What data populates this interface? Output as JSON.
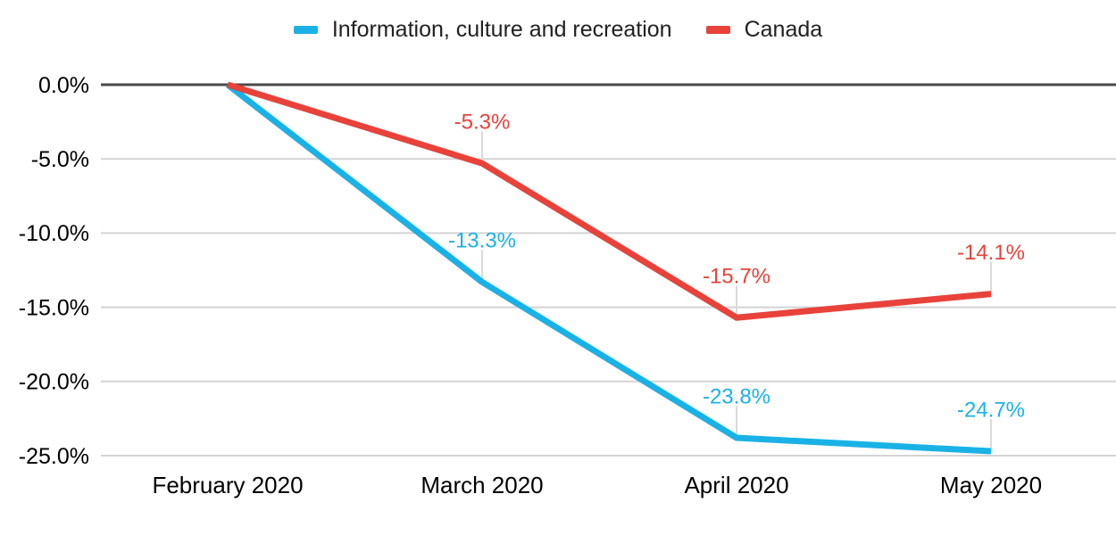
{
  "chart_data": {
    "type": "line",
    "title": "",
    "xlabel": "",
    "ylabel": "",
    "categories": [
      "February 2020",
      "March 2020",
      "April 2020",
      "May 2020"
    ],
    "series": [
      {
        "name": "Information, culture and recreation",
        "color": "#1ab2e6",
        "values": [
          0.0,
          -13.3,
          -23.8,
          -24.7
        ],
        "point_labels": [
          "",
          "-13.3%",
          "-23.8%",
          "-24.7%"
        ]
      },
      {
        "name": "Canada",
        "color": "#e8423a",
        "values": [
          0.0,
          -5.3,
          -15.7,
          -14.1
        ],
        "point_labels": [
          "",
          "-5.3%",
          "-15.7%",
          "-14.1%"
        ]
      }
    ],
    "y_ticks": [
      {
        "label": "0.0%",
        "value": 0
      },
      {
        "label": "-5.0%",
        "value": -5
      },
      {
        "label": "-10.0%",
        "value": -10
      },
      {
        "label": "-15.0%",
        "value": -15
      },
      {
        "label": "-20.0%",
        "value": -20
      },
      {
        "label": "-25.0%",
        "value": -25
      }
    ],
    "ylim": [
      -25,
      0
    ],
    "grid": true,
    "legend_position": "top",
    "colors": {
      "zero_line": "#4a4a4a",
      "gridline": "#d4d4d4",
      "leader_line": "#dadada",
      "axis_text": "#000000",
      "legend_text": "#212121",
      "background": "#ffffff"
    }
  }
}
